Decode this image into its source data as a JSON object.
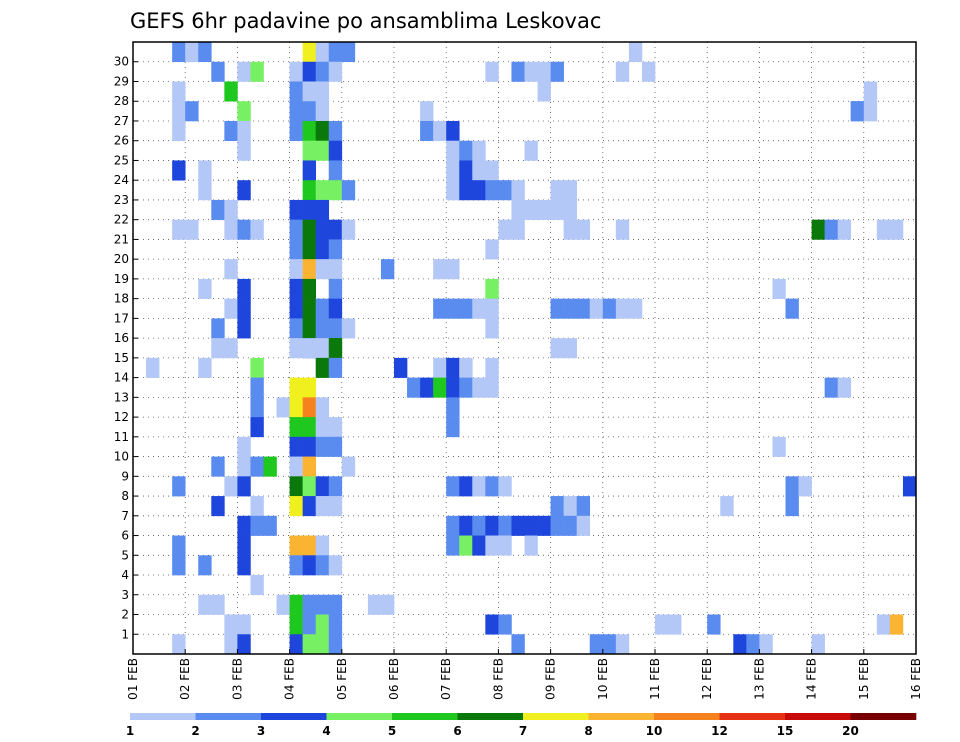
{
  "chart_data": {
    "type": "heatmap",
    "title": "GEFS 6hr padavine po ansamblima Leskovac",
    "xlabel": "",
    "ylabel": "",
    "x_tick_labels": [
      "01 FEB",
      "02 FEB",
      "03 FEB",
      "04 FEB",
      "05 FEB",
      "06 FEB",
      "07 FEB",
      "08 FEB",
      "09 FEB",
      "10 FEB",
      "11 FEB",
      "12 FEB",
      "13 FEB",
      "14 FEB",
      "15 FEB",
      "16 FEB"
    ],
    "y_tick_labels": [
      "1",
      "2",
      "3",
      "4",
      "5",
      "6",
      "7",
      "8",
      "9",
      "10",
      "11",
      "12",
      "13",
      "14",
      "15",
      "16",
      "17",
      "18",
      "19",
      "20",
      "21",
      "22",
      "23",
      "24",
      "25",
      "26",
      "27",
      "28",
      "29",
      "30"
    ],
    "x_unit": "6-hour step",
    "x_range": [
      0,
      60
    ],
    "y_range": [
      0,
      30
    ],
    "grid": true,
    "legend": {
      "placement": "bottom",
      "thresholds": [
        "1",
        "2",
        "3",
        "4",
        "5",
        "6",
        "7",
        "8",
        "10",
        "12",
        "15",
        "20"
      ],
      "colors": [
        "#b4c8f8",
        "#5a8cf0",
        "#1e46dc",
        "#78f064",
        "#1ec81e",
        "#0a780a",
        "#f0f01e",
        "#fab432",
        "#f5821e",
        "#e63214",
        "#c80a0a",
        "#780000"
      ]
    },
    "cells_note": "each cell: [x_step (0-59), member (1-30), level index into legend.colors]",
    "cells": [
      [
        3,
        30,
        1
      ],
      [
        4,
        30,
        0
      ],
      [
        5,
        30,
        1
      ],
      [
        13,
        30,
        6
      ],
      [
        14,
        30,
        0
      ],
      [
        15,
        30,
        1
      ],
      [
        16,
        30,
        1
      ],
      [
        38,
        30,
        0
      ],
      [
        6,
        29,
        1
      ],
      [
        8,
        29,
        0
      ],
      [
        9,
        29,
        3
      ],
      [
        12,
        29,
        0
      ],
      [
        13,
        29,
        2
      ],
      [
        14,
        29,
        1
      ],
      [
        15,
        29,
        0
      ],
      [
        27,
        29,
        0
      ],
      [
        29,
        29,
        1
      ],
      [
        30,
        29,
        0
      ],
      [
        31,
        29,
        0
      ],
      [
        32,
        29,
        1
      ],
      [
        37,
        29,
        0
      ],
      [
        39,
        29,
        0
      ],
      [
        3,
        28,
        0
      ],
      [
        7,
        28,
        4
      ],
      [
        12,
        28,
        1
      ],
      [
        13,
        28,
        0
      ],
      [
        14,
        28,
        0
      ],
      [
        31,
        28,
        0
      ],
      [
        56,
        28,
        0
      ],
      [
        3,
        27,
        0
      ],
      [
        4,
        27,
        1
      ],
      [
        8,
        27,
        3
      ],
      [
        12,
        27,
        1
      ],
      [
        13,
        27,
        1
      ],
      [
        14,
        27,
        0
      ],
      [
        22,
        27,
        0
      ],
      [
        55,
        27,
        1
      ],
      [
        55,
        27,
        1
      ],
      [
        56,
        27,
        0
      ],
      [
        3,
        26,
        0
      ],
      [
        7,
        26,
        1
      ],
      [
        8,
        26,
        0
      ],
      [
        12,
        26,
        1
      ],
      [
        13,
        26,
        4
      ],
      [
        14,
        26,
        5
      ],
      [
        15,
        26,
        1
      ],
      [
        22,
        26,
        1
      ],
      [
        23,
        26,
        0
      ],
      [
        24,
        26,
        2
      ],
      [
        8,
        25,
        0
      ],
      [
        13,
        25,
        3
      ],
      [
        14,
        25,
        3
      ],
      [
        15,
        25,
        2
      ],
      [
        24,
        25,
        0
      ],
      [
        25,
        25,
        1
      ],
      [
        26,
        25,
        0
      ],
      [
        30,
        25,
        0
      ],
      [
        3,
        24,
        2
      ],
      [
        5,
        24,
        0
      ],
      [
        13,
        24,
        2
      ],
      [
        15,
        24,
        1
      ],
      [
        24,
        24,
        0
      ],
      [
        25,
        24,
        2
      ],
      [
        26,
        24,
        0
      ],
      [
        27,
        24,
        0
      ],
      [
        5,
        23,
        0
      ],
      [
        8,
        23,
        2
      ],
      [
        13,
        23,
        4
      ],
      [
        14,
        23,
        3
      ],
      [
        15,
        23,
        3
      ],
      [
        16,
        23,
        1
      ],
      [
        24,
        23,
        0
      ],
      [
        25,
        23,
        2
      ],
      [
        26,
        23,
        2
      ],
      [
        27,
        23,
        1
      ],
      [
        28,
        23,
        1
      ],
      [
        29,
        23,
        0
      ],
      [
        32,
        23,
        0
      ],
      [
        33,
        23,
        0
      ],
      [
        6,
        22,
        1
      ],
      [
        7,
        22,
        0
      ],
      [
        12,
        22,
        2
      ],
      [
        13,
        22,
        2
      ],
      [
        14,
        22,
        2
      ],
      [
        29,
        22,
        0
      ],
      [
        30,
        22,
        0
      ],
      [
        31,
        22,
        0
      ],
      [
        32,
        22,
        0
      ],
      [
        33,
        22,
        0
      ],
      [
        3,
        21,
        0
      ],
      [
        4,
        21,
        0
      ],
      [
        7,
        21,
        0
      ],
      [
        8,
        21,
        1
      ],
      [
        9,
        21,
        0
      ],
      [
        12,
        21,
        1
      ],
      [
        13,
        21,
        5
      ],
      [
        14,
        21,
        2
      ],
      [
        15,
        21,
        2
      ],
      [
        16,
        21,
        0
      ],
      [
        28,
        21,
        0
      ],
      [
        29,
        21,
        0
      ],
      [
        33,
        21,
        0
      ],
      [
        34,
        21,
        0
      ],
      [
        37,
        21,
        0
      ],
      [
        52,
        21,
        5
      ],
      [
        53,
        21,
        1
      ],
      [
        54,
        21,
        0
      ],
      [
        57,
        21,
        0
      ],
      [
        58,
        21,
        0
      ],
      [
        12,
        20,
        1
      ],
      [
        13,
        20,
        5
      ],
      [
        14,
        20,
        2
      ],
      [
        15,
        20,
        1
      ],
      [
        27,
        20,
        0
      ],
      [
        7,
        19,
        0
      ],
      [
        12,
        19,
        0
      ],
      [
        13,
        19,
        7
      ],
      [
        14,
        19,
        0
      ],
      [
        15,
        19,
        0
      ],
      [
        19,
        19,
        1
      ],
      [
        23,
        19,
        0
      ],
      [
        24,
        19,
        0
      ],
      [
        5,
        18,
        0
      ],
      [
        8,
        18,
        2
      ],
      [
        12,
        18,
        2
      ],
      [
        13,
        18,
        5
      ],
      [
        15,
        18,
        1
      ],
      [
        27,
        18,
        3
      ],
      [
        49,
        18,
        0
      ],
      [
        7,
        17,
        0
      ],
      [
        8,
        17,
        2
      ],
      [
        12,
        17,
        2
      ],
      [
        13,
        17,
        5
      ],
      [
        14,
        17,
        1
      ],
      [
        15,
        17,
        2
      ],
      [
        23,
        17,
        1
      ],
      [
        24,
        17,
        1
      ],
      [
        25,
        17,
        1
      ],
      [
        26,
        17,
        0
      ],
      [
        27,
        17,
        0
      ],
      [
        32,
        17,
        1
      ],
      [
        33,
        17,
        1
      ],
      [
        34,
        17,
        1
      ],
      [
        35,
        17,
        0
      ],
      [
        36,
        17,
        1
      ],
      [
        37,
        17,
        0
      ],
      [
        38,
        17,
        0
      ],
      [
        50,
        17,
        1
      ],
      [
        6,
        16,
        1
      ],
      [
        8,
        16,
        2
      ],
      [
        12,
        16,
        1
      ],
      [
        13,
        16,
        5
      ],
      [
        14,
        16,
        1
      ],
      [
        15,
        16,
        1
      ],
      [
        16,
        16,
        0
      ],
      [
        27,
        16,
        0
      ],
      [
        13,
        15,
        2
      ],
      [
        15,
        15,
        5
      ],
      [
        32,
        15,
        0
      ],
      [
        33,
        15,
        0
      ],
      [
        6,
        15,
        0
      ],
      [
        7,
        15,
        0
      ],
      [
        12,
        15,
        0
      ],
      [
        13,
        15,
        0
      ],
      [
        14,
        15,
        0
      ],
      [
        15,
        15,
        5
      ],
      [
        1,
        14,
        0
      ],
      [
        5,
        14,
        0
      ],
      [
        9,
        14,
        3
      ],
      [
        14,
        14,
        5
      ],
      [
        15,
        14,
        1
      ],
      [
        20,
        14,
        2
      ],
      [
        23,
        14,
        0
      ],
      [
        24,
        14,
        2
      ],
      [
        25,
        14,
        0
      ],
      [
        27,
        14,
        0
      ],
      [
        9,
        13,
        1
      ],
      [
        12,
        13,
        6
      ],
      [
        13,
        13,
        6
      ],
      [
        21,
        13,
        1
      ],
      [
        22,
        13,
        2
      ],
      [
        23,
        13,
        4
      ],
      [
        24,
        13,
        2
      ],
      [
        25,
        13,
        1
      ],
      [
        26,
        13,
        0
      ],
      [
        27,
        13,
        0
      ],
      [
        53,
        13,
        1
      ],
      [
        54,
        13,
        0
      ],
      [
        11,
        12,
        0
      ],
      [
        12,
        12,
        6
      ],
      [
        13,
        12,
        8
      ],
      [
        14,
        12,
        0
      ],
      [
        9,
        12,
        1
      ],
      [
        24,
        12,
        1
      ],
      [
        9,
        11,
        2
      ],
      [
        12,
        11,
        4
      ],
      [
        13,
        11,
        4
      ],
      [
        14,
        11,
        0
      ],
      [
        15,
        11,
        0
      ],
      [
        24,
        11,
        1
      ],
      [
        8,
        10,
        0
      ],
      [
        12,
        10,
        2
      ],
      [
        13,
        10,
        2
      ],
      [
        14,
        10,
        1
      ],
      [
        15,
        10,
        1
      ],
      [
        49,
        10,
        0
      ],
      [
        6,
        9,
        1
      ],
      [
        8,
        9,
        0
      ],
      [
        9,
        9,
        1
      ],
      [
        10,
        9,
        4
      ],
      [
        12,
        9,
        0
      ],
      [
        13,
        9,
        7
      ],
      [
        16,
        9,
        0
      ],
      [
        3,
        8,
        1
      ],
      [
        7,
        8,
        0
      ],
      [
        8,
        8,
        2
      ],
      [
        12,
        8,
        5
      ],
      [
        13,
        8,
        3
      ],
      [
        14,
        8,
        2
      ],
      [
        15,
        8,
        1
      ],
      [
        24,
        8,
        1
      ],
      [
        25,
        8,
        2
      ],
      [
        26,
        8,
        0
      ],
      [
        27,
        8,
        1
      ],
      [
        28,
        8,
        0
      ],
      [
        50,
        8,
        1
      ],
      [
        51,
        8,
        0
      ],
      [
        59,
        8,
        2
      ],
      [
        6,
        7,
        2
      ],
      [
        9,
        7,
        0
      ],
      [
        12,
        7,
        6
      ],
      [
        13,
        7,
        2
      ],
      [
        14,
        7,
        0
      ],
      [
        15,
        7,
        0
      ],
      [
        32,
        7,
        1
      ],
      [
        33,
        7,
        0
      ],
      [
        34,
        7,
        1
      ],
      [
        45,
        7,
        0
      ],
      [
        50,
        7,
        1
      ],
      [
        8,
        6,
        2
      ],
      [
        9,
        6,
        1
      ],
      [
        10,
        6,
        1
      ],
      [
        24,
        6,
        1
      ],
      [
        25,
        6,
        2
      ],
      [
        26,
        6,
        1
      ],
      [
        27,
        6,
        2
      ],
      [
        28,
        6,
        1
      ],
      [
        29,
        6,
        2
      ],
      [
        30,
        6,
        2
      ],
      [
        31,
        6,
        2
      ],
      [
        32,
        6,
        1
      ],
      [
        33,
        6,
        1
      ],
      [
        34,
        6,
        0
      ],
      [
        3,
        5,
        1
      ],
      [
        8,
        5,
        2
      ],
      [
        12,
        5,
        7
      ],
      [
        13,
        5,
        7
      ],
      [
        14,
        5,
        0
      ],
      [
        24,
        5,
        1
      ],
      [
        25,
        5,
        3
      ],
      [
        26,
        5,
        2
      ],
      [
        27,
        5,
        0
      ],
      [
        28,
        5,
        0
      ],
      [
        30,
        5,
        0
      ],
      [
        3,
        4,
        1
      ],
      [
        5,
        4,
        1
      ],
      [
        8,
        4,
        2
      ],
      [
        12,
        4,
        1
      ],
      [
        13,
        4,
        2
      ],
      [
        14,
        4,
        1
      ],
      [
        15,
        4,
        0
      ],
      [
        9,
        3,
        0
      ],
      [
        5,
        2,
        0
      ],
      [
        6,
        2,
        0
      ],
      [
        11,
        2,
        0
      ],
      [
        12,
        2,
        4
      ],
      [
        13,
        2,
        1
      ],
      [
        14,
        2,
        1
      ],
      [
        15,
        2,
        1
      ],
      [
        18,
        2,
        0
      ],
      [
        19,
        2,
        0
      ],
      [
        7,
        1,
        0
      ],
      [
        8,
        1,
        0
      ],
      [
        12,
        1,
        4
      ],
      [
        13,
        1,
        1
      ],
      [
        14,
        1,
        3
      ],
      [
        15,
        1,
        1
      ],
      [
        27,
        1,
        2
      ],
      [
        28,
        1,
        1
      ],
      [
        40,
        1,
        0
      ],
      [
        41,
        1,
        0
      ],
      [
        44,
        1,
        1
      ],
      [
        57,
        1,
        0
      ],
      [
        58,
        1,
        7
      ],
      [
        3,
        0,
        0
      ],
      [
        7,
        0,
        0
      ],
      [
        8,
        0,
        2
      ],
      [
        12,
        0,
        2
      ],
      [
        13,
        0,
        3
      ],
      [
        14,
        0,
        3
      ],
      [
        15,
        0,
        1
      ],
      [
        29,
        0,
        1
      ],
      [
        35,
        0,
        1
      ],
      [
        36,
        0,
        1
      ],
      [
        37,
        0,
        0
      ],
      [
        46,
        0,
        2
      ],
      [
        47,
        0,
        1
      ],
      [
        48,
        0,
        0
      ],
      [
        52,
        0,
        0
      ]
    ]
  }
}
